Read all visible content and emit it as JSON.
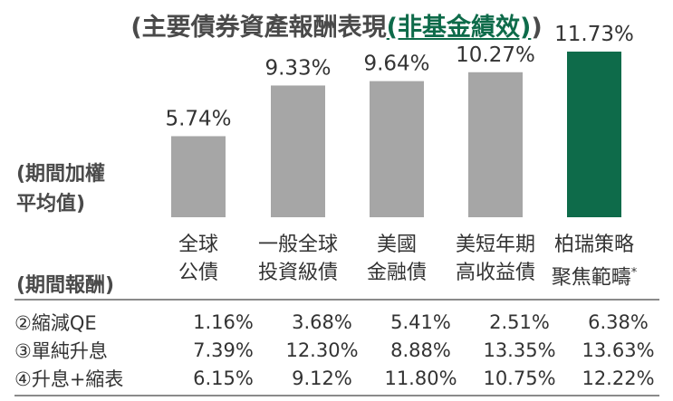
{
  "title": {
    "prefix": "(主要債券資產報酬表現",
    "highlight": "(非基金績效)",
    "suffix": ")"
  },
  "colors": {
    "bar_default": "#a6a6a6",
    "bar_highlight": "#0e6b4a",
    "title_highlight": "#0e6b4a"
  },
  "chart_data": {
    "type": "bar",
    "categories": [
      [
        "全球",
        "公債"
      ],
      [
        "一般全球",
        "投資級債"
      ],
      [
        "美國",
        "金融債"
      ],
      [
        "美短年期",
        "高收益債"
      ],
      [
        "柏瑞策略",
        "聚焦範疇"
      ]
    ],
    "values": [
      5.74,
      9.33,
      9.64,
      10.27,
      11.73
    ],
    "value_labels": [
      "5.74%",
      "9.33%",
      "9.64%",
      "10.27%",
      "11.73%"
    ],
    "highlight_index": 4,
    "asterisk": "*",
    "ylabel": "(期間加權平均值)",
    "ylabel_lines": [
      "(期間加權",
      "平均值)"
    ],
    "ylim": [
      0,
      12.5
    ]
  },
  "table": {
    "header": "(期間報酬)",
    "rows": [
      {
        "label": "②縮減QE",
        "values": [
          "1.16%",
          "3.68%",
          "5.41%",
          "2.51%",
          "6.38%"
        ]
      },
      {
        "label": "③單純升息",
        "values": [
          "7.39%",
          "12.30%",
          "8.88%",
          "13.35%",
          "13.63%"
        ]
      },
      {
        "label": "④升息+縮表",
        "values": [
          "6.15%",
          "9.12%",
          "11.80%",
          "10.75%",
          "12.22%"
        ]
      }
    ]
  }
}
